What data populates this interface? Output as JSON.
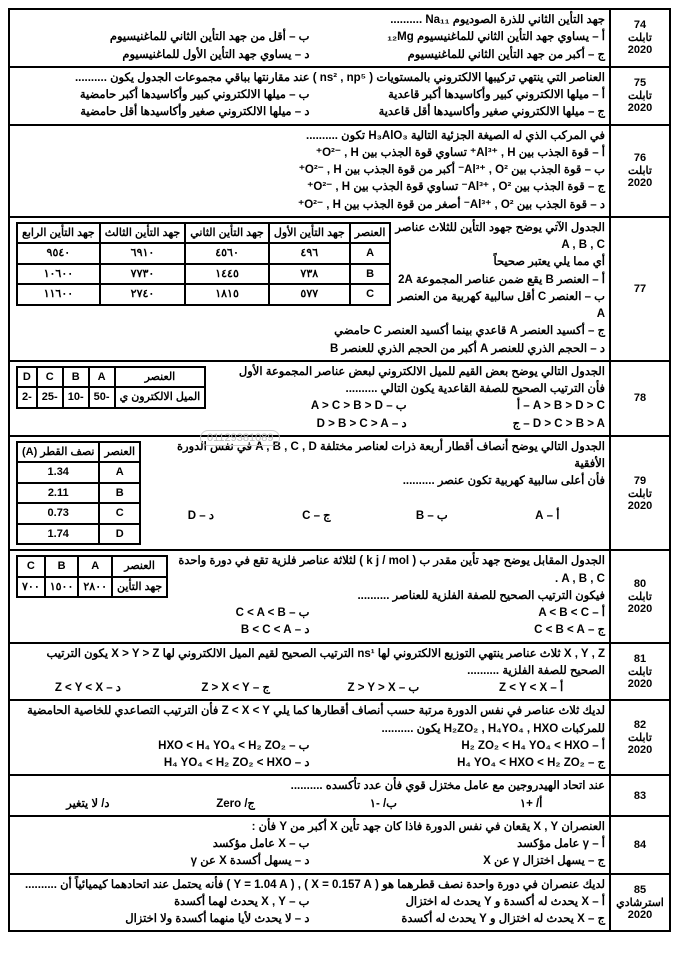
{
  "watermark_phone": "01129381089",
  "q74": {
    "num": "74",
    "tag1": "تابلت",
    "tag2": "2020",
    "stem": "جهد التأين الثاني للذرة الصوديوم Na₁₁ ..........",
    "a": "أ – يساوي جهد التأين الثاني للماغنيسيوم ₁₂Mg",
    "b": "ب – أقل من جهد التأين الثاني للماغنيسيوم",
    "c": "ج – أكبر من جهد التأين الثاني للماغنيسيوم",
    "d": "د – يساوي جهد التأين الأول للماغنيسيوم"
  },
  "q75": {
    "num": "75",
    "tag1": "تابلت",
    "tag2": "2020",
    "stem": "العناصر التي ينتهي تركيبها الالكتروني بالمستويات ( ns² , np⁵ ) عند مقارنتها بباقي مجموعات الجدول يكون ..........",
    "a": "أ – ميلها الالكتروني كبير وأكاسيدها أكبر قاعدية",
    "b": "ب – ميلها الالكتروني كبير وأكاسيدها أكبر حامضية",
    "c": "ج – ميلها الالكتروني صغير وأكاسيدها أقل قاعدية",
    "d": "د – ميلها الالكتروني صغير وأكاسيدها أقل حامضية"
  },
  "q76": {
    "num": "76",
    "tag1": "تابلت",
    "tag2": "2020",
    "stem": "في المركب الذي له الصيغة الجزئية التالية H₃AlO₃ تكون ..........",
    "a": "أ – قوة الجذب بين Al³⁺ , H⁺  تساوي قوة الجذب بين O²⁻ , H⁺",
    "b": "ب – قوة الجذب بين Al³⁺ , O²⁻  أكبر من قوة الجذب بين O²⁻ , H⁺",
    "c": "ج – قوة الجذب بين Al³⁺ , O²⁻  تساوي قوة الجذب بين O²⁻ , H⁺",
    "d": "د – قوة الجذب بين Al³⁺ , O²⁻  أصغر من قوة الجذب بين O²⁻ , H⁺"
  },
  "q77": {
    "num": "77",
    "stem": "الجدول الآتي يوضح جهود التأين للثلاث عناصر A , B , C",
    "sub": "أي مما يلي يعتبر صحيحاً",
    "a": "أ – العنصر B يقع ضمن عناصر المجموعة 2A",
    "b": "ب – العنصر C أقل سالبية كهربية من العنصر A",
    "c": "ج – أكسيد العنصر A قاعدي بينما أكسيد العنصر C حامضي",
    "d": "د – الحجم الذري للعنصر A أكبر من الحجم الذري للعنصر B",
    "table": {
      "headers": [
        "العنصر",
        "جهد التأين الأول",
        "جهد التأين الثاني",
        "جهد التأين الثالث",
        "جهد التأين الرابع"
      ],
      "rows": [
        [
          "A",
          "٤٩٦",
          "٤٥٦٠",
          "٦٩١٠",
          "٩٥٤٠"
        ],
        [
          "B",
          "٧٣٨",
          "١٤٤٥",
          "٧٧٣٠",
          "١٠٦٠٠"
        ],
        [
          "C",
          "٥٧٧",
          "١٨١٥",
          "٢٧٤٠",
          "١١٦٠٠"
        ]
      ]
    }
  },
  "q78": {
    "num": "78",
    "stem": "الجدول التالي يوضح بعض القيم للميل الالكتروني لبعض عناصر المجموعة الأول",
    "sub": "فأن الترتيب الصحيح للصفة القاعدية يكون التالي ..........",
    "a": "A > B > D > C – أ",
    "b": "ب – A > C > B > D",
    "c": "D > C > B > A – ج",
    "d": "د – D > B > C > A",
    "table": {
      "headers": [
        "العنصر",
        "A",
        "B",
        "C",
        "D"
      ],
      "row_label": "الميل الالكترون ي",
      "values": [
        "-50",
        "-10",
        "-25",
        "-2"
      ]
    }
  },
  "q79": {
    "num": "79",
    "tag1": "تابلت",
    "tag2": "2020",
    "stem": "الجدول التالي يوضح أنصاف أقطار أربعة ذرات لعناصر مختلفة A , B , C , D في نفس الدورة الأفقية",
    "sub": "فأن أعلى سالبية كهربية تكون عنصر ..........",
    "a": "أ – A",
    "b": "ب – B",
    "c": "ج – C",
    "d": "د – D",
    "table": {
      "headers": [
        "العنصر",
        "نصف القطر (A)"
      ],
      "rows": [
        [
          "A",
          "1.34"
        ],
        [
          "B",
          "2.11"
        ],
        [
          "C",
          "0.73"
        ],
        [
          "D",
          "1.74"
        ]
      ]
    }
  },
  "q80": {
    "num": "80",
    "tag1": "تابلت",
    "tag2": "2020",
    "stem": "الجدول المقابل يوضح جهد تأين مقدر ب ( k j / mol ) لثلاثة عناصر فلزية تقع في دورة واحدة A , B , C .",
    "sub": "فيكون الترتيب الصحيح للصفة الفلزية للعناصر ..........",
    "a": "أ – A < B < C",
    "b": "ب – C < A < B",
    "c": "ج – C < B < A",
    "d": "د – B < C < A",
    "table": {
      "headers": [
        "العنصر",
        "A",
        "B",
        "C"
      ],
      "row_label": "جهد التأين",
      "values": [
        "٢٨٠٠",
        "١٥٠٠",
        "٧٠٠"
      ]
    }
  },
  "q81": {
    "num": "81",
    "tag1": "تابلت",
    "tag2": "2020",
    "stem": "X , Y , Z ثلاث عناصر ينتهي التوزيع الالكتروني لها ns¹ الترتيب الصحيح لقيم الميل الالكتروني لها X > Y > Z يكون الترتيب الصحيح للصفة الفلزية ..........",
    "a": "أ – Z < Y < X",
    "b": "ب – Z > Y > X",
    "c": "ج – Z > X < Y",
    "d": "د – Z < Y < X"
  },
  "q82": {
    "num": "82",
    "tag1": "تابلت",
    "tag2": "2020",
    "stem": "لديك ثلاث عناصر في نفس الدورة مرتبة حسب أنصاف أقطارها كما يلي Z < X < Y فأن الترتيب التصاعدي للخاصية الحامضية للمركبات H₂ZO₂ , H₄YO₄ , HXO يكون ..........",
    "a": "أ – H₂ ZO₂ < H₄ YO₄ < HXO",
    "b": "ب – HXO < H₄ YO₄ < H₂ ZO₂",
    "c": "ج – H₄ YO₄ < HXO < H₂ ZO₂",
    "d": "د – H₄ YO₄ < H₂ ZO₂ < HXO"
  },
  "q83": {
    "num": "83",
    "stem": "عند اتحاد الهيدروجين مع عامل مختزل قوي فأن عدد تأكسده ..........",
    "a": "أ/ +١",
    "b": "ب/ -١",
    "c": "ج/ Zero",
    "d": "د/ لا يتغير"
  },
  "q84": {
    "num": "84",
    "stem": "العنصران X , Y يقعان في نفس الدورة فاذا كان جهد تأين X أكبر من Y فأن :",
    "a": "أ – γ عامل مؤكسد",
    "b": "ب – X عامل مؤكسد",
    "c": "ج – يسهل اختزال γ عن X",
    "d": "د – يسهل أكسدة X عن γ"
  },
  "q85": {
    "num": "85",
    "tag1": "استرشادي",
    "tag2": "2020",
    "stem": "لديك عنصران في دورة واحدة نصف قطرهما هو ( X = 0.157 A ) , ( Y = 1.04 A ) فأنه يحتمل عند اتحادهما كيميائياً أن ..........",
    "a": "أ – X يحدث له أكسدة و Y يحدث له اختزال",
    "b": "ب – X , Y يحدث لهما أكسدة",
    "c": "ج – X يحدث له اختزال و Y يحدث له أكسدة",
    "d": "د – لا يحدث لأيا منهما أكسدة ولا اختزال"
  }
}
